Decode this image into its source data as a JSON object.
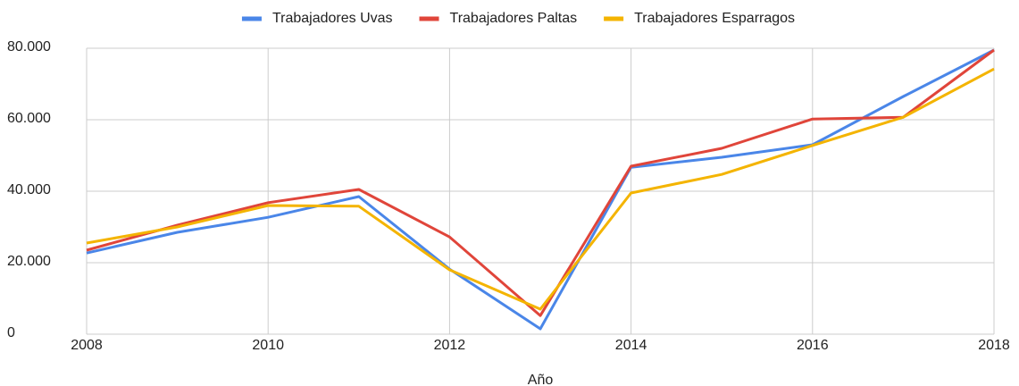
{
  "chart_data": {
    "type": "line",
    "x_label": "Año",
    "x": [
      2008,
      2009,
      2010,
      2011,
      2012,
      2013,
      2014,
      2015,
      2016,
      2017,
      2018
    ],
    "series": [
      {
        "name": "Trabajadores Uvas",
        "color": "#4a86e8",
        "values": [
          22700,
          28500,
          32700,
          38500,
          18200,
          1500,
          46700,
          49500,
          53000,
          66500,
          79500
        ]
      },
      {
        "name": "Trabajadores Paltas",
        "color": "#e0453a",
        "values": [
          23500,
          30500,
          36800,
          40500,
          27200,
          5200,
          47000,
          52000,
          60200,
          60700,
          79500
        ]
      },
      {
        "name": "Trabajadores Esparragos",
        "color": "#f4b400",
        "values": [
          25500,
          30000,
          36000,
          35800,
          18000,
          7000,
          39500,
          44700,
          52800,
          60700,
          74200
        ]
      }
    ],
    "xlim": [
      2008,
      2018
    ],
    "xticks": [
      2008,
      2010,
      2012,
      2014,
      2016,
      2018
    ],
    "ylim": [
      0,
      80000
    ],
    "yticks": [
      0,
      {
        "value": 20000,
        "label": "20.000"
      },
      {
        "value": 40000,
        "label": "40.000"
      },
      {
        "value": 60000,
        "label": "60.000"
      },
      {
        "value": 80000,
        "label": "80.000"
      }
    ],
    "grid": true,
    "legend": "top"
  }
}
